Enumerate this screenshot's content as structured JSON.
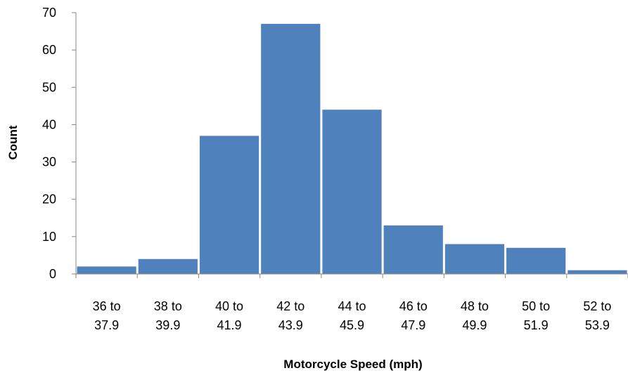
{
  "chart_data": {
    "type": "bar",
    "title": "",
    "xlabel": "Motorcycle Speed (mph)",
    "ylabel": "Count",
    "ylim": [
      0,
      70
    ],
    "yticks": [
      0,
      10,
      20,
      30,
      40,
      50,
      60,
      70
    ],
    "grid": false,
    "bar_color": "#4F81BD",
    "categories": [
      [
        "36 to",
        "37.9"
      ],
      [
        "38 to",
        "39.9"
      ],
      [
        "40 to",
        "41.9"
      ],
      [
        "42 to",
        "43.9"
      ],
      [
        "44 to",
        "45.9"
      ],
      [
        "46 to",
        "47.9"
      ],
      [
        "48 to",
        "49.9"
      ],
      [
        "50 to",
        "51.9"
      ],
      [
        "52 to",
        "53.9"
      ]
    ],
    "values": [
      2,
      4,
      37,
      67,
      44,
      13,
      8,
      7,
      1
    ]
  }
}
